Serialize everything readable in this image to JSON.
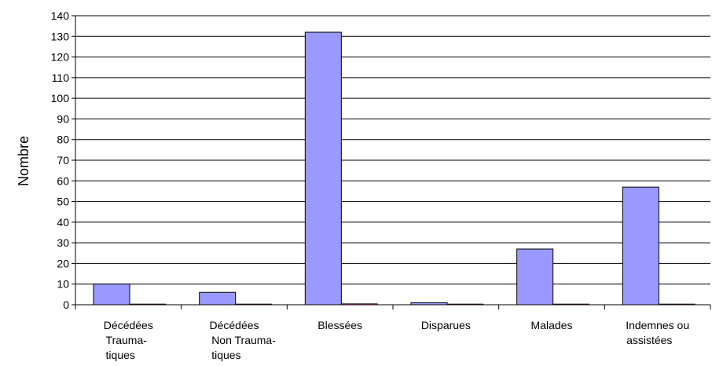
{
  "chart_data": {
    "type": "bar",
    "categories": [
      [
        "Décédées",
        "Trauma-",
        "tiques"
      ],
      [
        "Décédées",
        "Non Trauma-",
        "tiques"
      ],
      [
        "Blessées"
      ],
      [
        "Disparues"
      ],
      [
        "Malades"
      ],
      [
        "Indemnes ou",
        "assistées"
      ]
    ],
    "series": [
      {
        "values": [
          10,
          6,
          132,
          1,
          27,
          57
        ],
        "color": "#9999ff"
      },
      {
        "values": [
          0,
          0,
          0.5,
          0,
          0,
          0
        ],
        "color": "#993366"
      }
    ],
    "ylabel": "Nombre",
    "ylim": [
      0,
      140
    ],
    "yticks": [
      0,
      10,
      20,
      30,
      40,
      50,
      60,
      70,
      80,
      90,
      100,
      110,
      120,
      130,
      140
    ],
    "grid": true,
    "legend": "none"
  }
}
